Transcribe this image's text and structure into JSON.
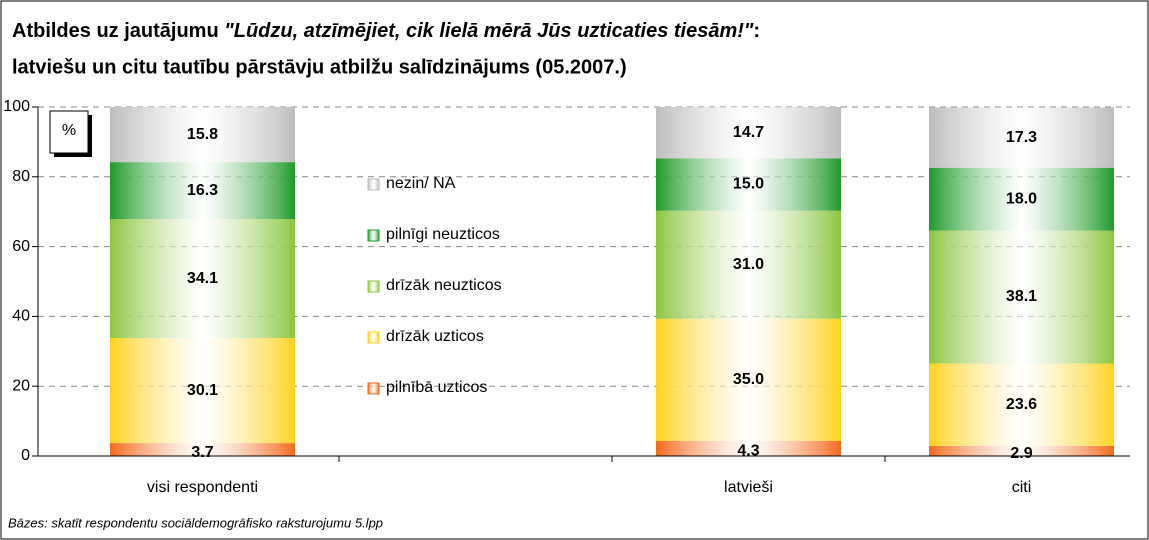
{
  "chart_data": {
    "type": "stacked_bar",
    "title": [
      "Atbildes uz jautājumu ",
      "\"Lūdzu, atzīmējiet, cik lielā mērā Jūs uzticaties tiesām!\"",
      ":",
      "latviešu un citu tautību pārstāvju atbilžu salīdzinājums (05.2007.)"
    ],
    "unit_label": "%",
    "footnote": "Bāzes: skatīt respondentu sociāldemogrāfisko raksturojumu 5.lpp",
    "categories": [
      "visi respondenti",
      null,
      "latvieši",
      "citi"
    ],
    "series": [
      {
        "name": "pilnībā uzticos",
        "color": "#f26a1b",
        "values": [
          3.7,
          null,
          4.3,
          2.9
        ],
        "value_labels": [
          "3.7",
          null,
          "4.3",
          "2.9"
        ]
      },
      {
        "name": "drīzāk uzticos",
        "color": "#ffd21f",
        "values": [
          30.1,
          null,
          35.0,
          23.6
        ],
        "value_labels": [
          "30.1",
          null,
          "35.0",
          "23.6"
        ]
      },
      {
        "name": "drīzāk neuzticos",
        "color": "#8cc63f",
        "values": [
          34.1,
          null,
          31.0,
          38.1
        ],
        "value_labels": [
          "34.1",
          null,
          "31.0",
          "38.1"
        ]
      },
      {
        "name": "pilnīgi neuzticos",
        "color": "#1f9a2a",
        "values": [
          16.3,
          null,
          15.0,
          18.0
        ],
        "value_labels": [
          "16.3",
          null,
          "15.0",
          "18.0"
        ]
      },
      {
        "name": "nezin/ NA",
        "color": "#bdbdbd",
        "values": [
          15.8,
          null,
          14.7,
          17.3
        ],
        "value_labels": [
          "15.8",
          null,
          "14.7",
          "17.3"
        ]
      }
    ],
    "ylim": [
      0,
      100
    ],
    "yticks": [
      0,
      20,
      40,
      60,
      80,
      100
    ],
    "grid": true
  }
}
